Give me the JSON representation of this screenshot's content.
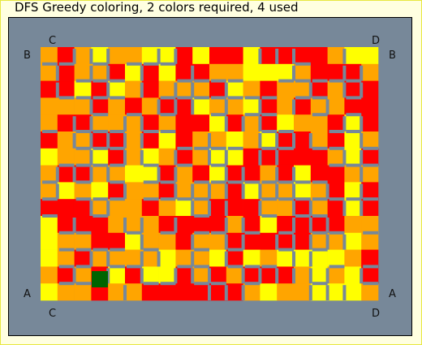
{
  "title": "DFS Greedy coloring, 2 colors required, 4 used",
  "labels": {
    "top_left": "C",
    "top_right": "D",
    "upper_left": "B",
    "upper_right": "B",
    "lower_left": "A",
    "lower_right": "A",
    "bottom_left": "C",
    "bottom_right": "D"
  },
  "colors": {
    "background": "#778899",
    "wall": "#778899",
    "palette": [
      "#ff0000",
      "#ffa500",
      "#ffff00"
    ],
    "marker": "#006400"
  },
  "grid": {
    "cols": 20,
    "rows": 15
  }
}
